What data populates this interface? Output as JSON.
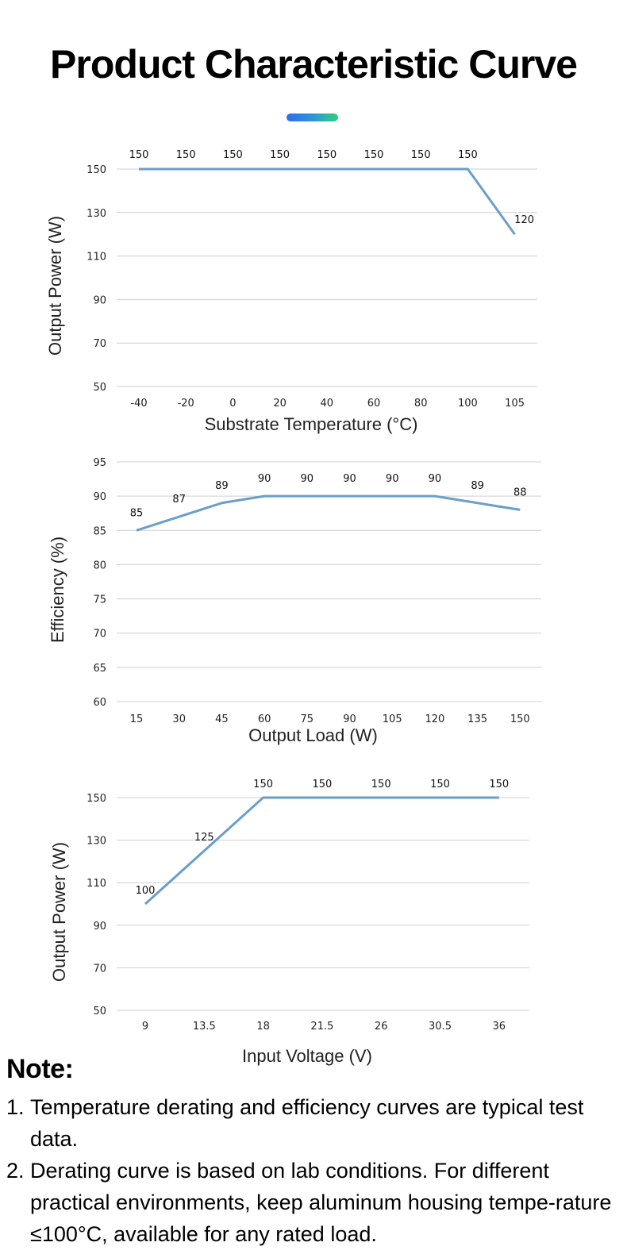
{
  "page": {
    "title": "Product Characteristic Curve",
    "accent_colors": [
      "#2f6fe6",
      "#2fd07a"
    ]
  },
  "chart_data": [
    {
      "type": "line",
      "title": "",
      "xlabel": "Substrate Temperature (°C)",
      "ylabel": "Output Power (W)",
      "categories": [
        "-40",
        "-20",
        "0",
        "20",
        "40",
        "60",
        "80",
        "100",
        "105"
      ],
      "values": [
        150,
        150,
        150,
        150,
        150,
        150,
        150,
        150,
        120
      ],
      "data_labels": [
        "150",
        "150",
        "150",
        "150",
        "150",
        "150",
        "150",
        "150",
        "120"
      ],
      "yticks": [
        "50",
        "70",
        "90",
        "110",
        "130",
        "150"
      ],
      "ylim": [
        50,
        150
      ],
      "grid": true,
      "line_color": "#6a9fc9"
    },
    {
      "type": "line",
      "title": "",
      "xlabel": "Output Load (W)",
      "ylabel": "Efficiency (%)",
      "categories": [
        "15",
        "30",
        "45",
        "60",
        "75",
        "90",
        "105",
        "120",
        "135",
        "150"
      ],
      "values": [
        85,
        87,
        89,
        90,
        90,
        90,
        90,
        90,
        89,
        88
      ],
      "data_labels": [
        "85",
        "87",
        "89",
        "90",
        "90",
        "90",
        "90",
        "90",
        "89",
        "88"
      ],
      "yticks": [
        "60",
        "65",
        "70",
        "75",
        "80",
        "85",
        "90",
        "95"
      ],
      "ylim": [
        60,
        95
      ],
      "grid": true,
      "line_color": "#6a9fc9"
    },
    {
      "type": "line",
      "title": "",
      "xlabel": "Input Voltage (V)",
      "ylabel": "Output Power (W)",
      "categories": [
        "9",
        "13.5",
        "18",
        "21.5",
        "26",
        "30.5",
        "36"
      ],
      "values": [
        100,
        125,
        150,
        150,
        150,
        150,
        150
      ],
      "data_labels": [
        "100",
        "125",
        "150",
        "150",
        "150",
        "150",
        "150"
      ],
      "yticks": [
        "50",
        "70",
        "90",
        "110",
        "130",
        "150"
      ],
      "ylim": [
        50,
        150
      ],
      "grid": true,
      "line_color": "#6a9fc9"
    }
  ],
  "notes": {
    "heading": "Note:",
    "items": [
      {
        "num": "1.",
        "text": "Temperature derating and efficiency curves are typical test data."
      },
      {
        "num": "2.",
        "text": "Derating curve is based on lab conditions. For different practical environments, keep aluminum housing tempe-rature ≤100°C, available for any rated load."
      }
    ]
  }
}
